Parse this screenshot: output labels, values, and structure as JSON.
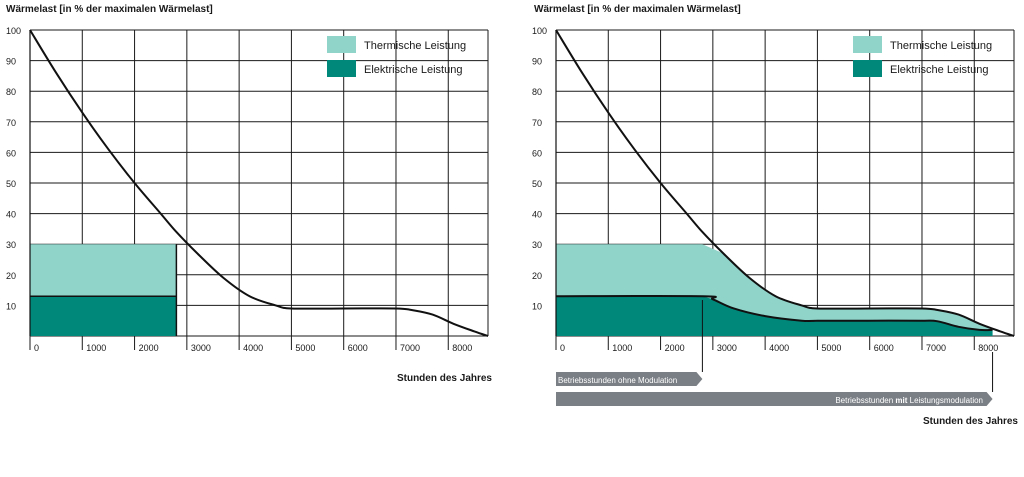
{
  "colors": {
    "thermal": "#8fd3c9",
    "electrical": "#00897b",
    "curve": "#111111",
    "grid": "#1a1a1a",
    "arrow": "#7a7f85"
  },
  "chart_data": [
    {
      "type": "area",
      "title": "Wärmelast [in % der maximalen Wärmelast]",
      "xlabel": "Stunden des Jahres",
      "ylabel": "Wärmelast [in % der maximalen Wärmelast]",
      "xlim": [
        0,
        8760
      ],
      "ylim": [
        0,
        100
      ],
      "x_ticks": [
        "0",
        "1000",
        "2000",
        "3000",
        "4000",
        "5000",
        "6000",
        "7000",
        "8000"
      ],
      "y_ticks": [
        "10",
        "20",
        "30",
        "40",
        "50",
        "60",
        "70",
        "80",
        "90",
        "100"
      ],
      "grid": true,
      "legend": {
        "position": "top-right",
        "entries": [
          "Thermische Leistung",
          "Elektrische Leistung"
        ]
      },
      "curve": {
        "x": [
          0,
          500,
          1000,
          1500,
          2000,
          2500,
          2800,
          3200,
          3700,
          4200,
          4700,
          5000,
          6000,
          7000,
          7300,
          7700,
          8100,
          8500,
          8760
        ],
        "y": [
          100,
          86,
          73,
          61,
          50,
          40,
          34,
          27,
          19,
          13,
          10,
          9,
          9,
          9,
          8.5,
          7,
          4,
          1.5,
          0
        ]
      },
      "series": [
        {
          "name": "Thermische Leistung",
          "x": [
            0,
            2800
          ],
          "y": [
            30,
            30
          ]
        },
        {
          "name": "Elektrische Leistung",
          "x": [
            0,
            2800
          ],
          "y": [
            13,
            13
          ]
        }
      ]
    },
    {
      "type": "area",
      "title": "Wärmelast [in % der maximalen Wärmelast]",
      "xlabel": "Stunden des Jahres",
      "ylabel": "Wärmelast [in % der maximalen Wärmelast]",
      "xlim": [
        0,
        8760
      ],
      "ylim": [
        0,
        100
      ],
      "x_ticks": [
        "0",
        "1000",
        "2000",
        "3000",
        "4000",
        "5000",
        "6000",
        "7000",
        "8000"
      ],
      "y_ticks": [
        "10",
        "20",
        "30",
        "40",
        "50",
        "60",
        "70",
        "80",
        "90",
        "100"
      ],
      "grid": true,
      "legend": {
        "position": "top-right",
        "entries": [
          "Thermische Leistung",
          "Elektrische Leistung"
        ]
      },
      "curve": {
        "x": [
          0,
          500,
          1000,
          1500,
          2000,
          2500,
          2800,
          3200,
          3700,
          4200,
          4700,
          5000,
          6000,
          7000,
          7300,
          7700,
          8100,
          8500,
          8760
        ],
        "y": [
          100,
          86,
          73,
          61,
          50,
          40,
          34,
          27,
          19,
          13,
          10,
          9,
          9,
          9,
          8.5,
          7,
          4,
          1.5,
          0
        ]
      },
      "series": [
        {
          "name": "Thermische Leistung",
          "x": [
            0,
            2800,
            3200,
            3700,
            4200,
            4700,
            5000,
            6000,
            7000,
            7300,
            7700,
            8100,
            8350
          ],
          "y": [
            30,
            30,
            27,
            19,
            13,
            10,
            9,
            9,
            9,
            8.5,
            7,
            4,
            2
          ]
        },
        {
          "name": "Elektrische Leistung",
          "x": [
            0,
            2800,
            3000,
            3400,
            4000,
            4700,
            5000,
            6000,
            7000,
            7300,
            7700,
            8100,
            8350
          ],
          "y": [
            13,
            13,
            12,
            9,
            6.5,
            5,
            5,
            5,
            5,
            4.8,
            3,
            2,
            2
          ]
        }
      ],
      "annotations": {
        "arrow_without_modulation": {
          "text": "Betriebsstunden ohne Modulation",
          "x_end": 2800
        },
        "arrow_with_modulation": {
          "text_before": "Betriebsstunden ",
          "text_bold": "mit",
          "text_after": " Leistungsmodulation",
          "x_end": 8350
        }
      }
    }
  ]
}
